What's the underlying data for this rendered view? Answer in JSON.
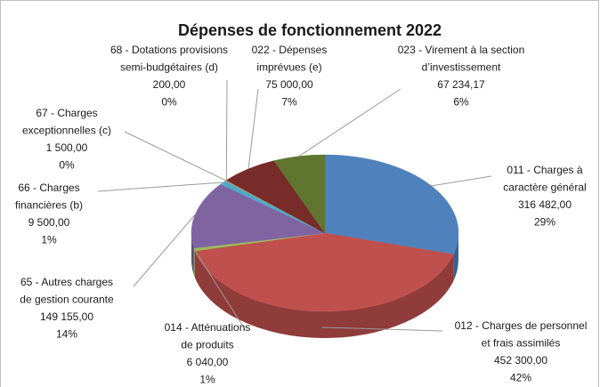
{
  "chart_data": {
    "type": "pie3d",
    "title": "Dépenses de fonctionnement 2022",
    "categories": [
      [
        "011 - Charges à",
        "caractère général"
      ],
      [
        "012 - Charges de personnel",
        "et frais assimilés"
      ],
      [
        "014 - Atténuations",
        "de produits"
      ],
      [
        "65 - Autres charges",
        "de gestion courante"
      ],
      [
        "66 - Charges",
        "financières (b)"
      ],
      [
        "67 - Charges",
        "exceptionnelles (c)"
      ],
      [
        "68 - Dotations provisions",
        "semi-budgétaires (d)"
      ],
      [
        "022 - Dépenses",
        "imprévues (e)"
      ],
      [
        "023 - Virement à la section",
        "d’investissement"
      ]
    ],
    "values": [
      316482,
      452300,
      6040,
      149155,
      9500,
      1500,
      200,
      75000,
      67234.17
    ],
    "value_labels": [
      "316 482,00",
      "452 300,00",
      "6 040,00",
      "149 155,00",
      "9 500,00",
      "1 500,00",
      "200,00",
      "75 000,00",
      "67 234,17"
    ],
    "percentage_labels": [
      "29%",
      "42%",
      "1%",
      "14%",
      "1%",
      "0%",
      "0%",
      "7%",
      "6%"
    ],
    "colors": [
      "#4f81bd",
      "#c0504d",
      "#9bbb59",
      "#8064a2",
      "#4bacc6",
      "#f79646",
      "#2c4d75",
      "#772c2a",
      "#5f7530"
    ]
  }
}
